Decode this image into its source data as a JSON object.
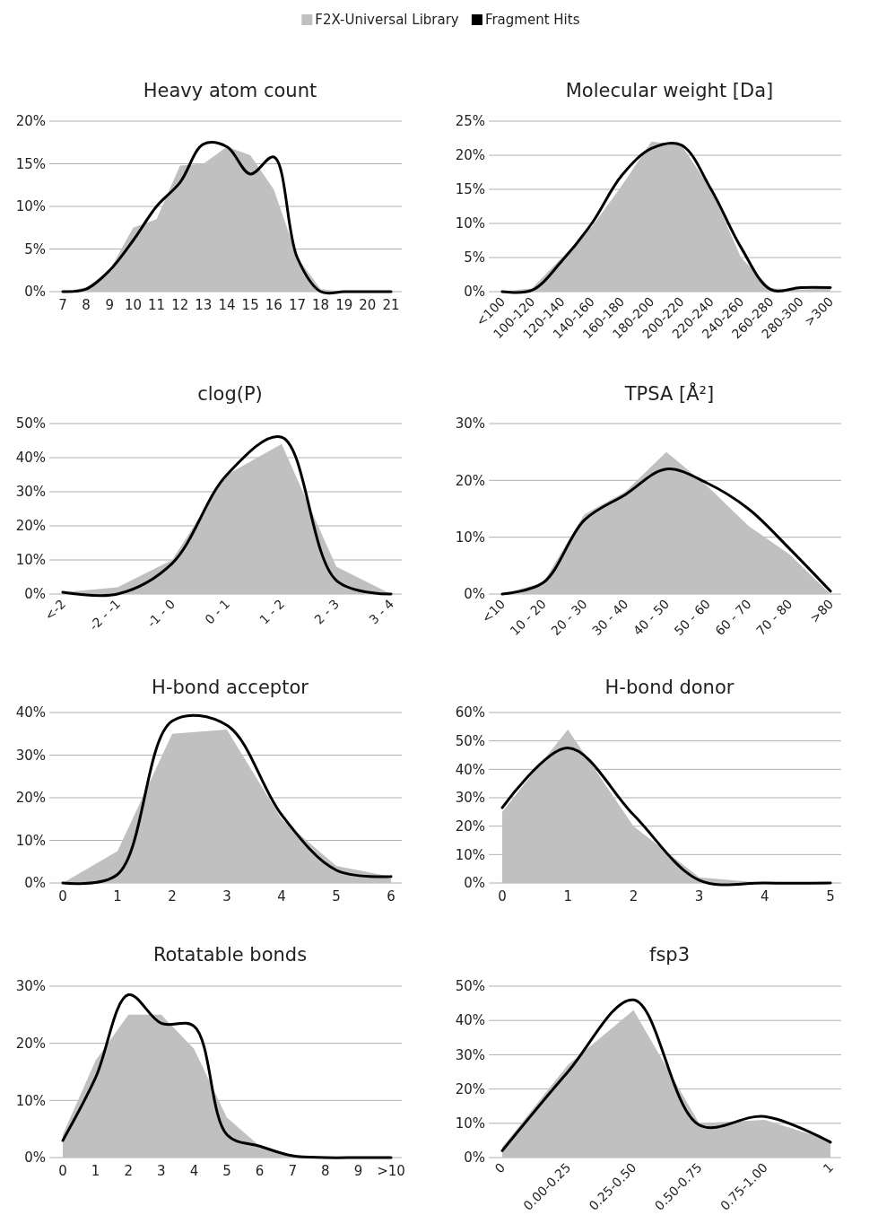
{
  "chart_data": [
    {
      "type": "area",
      "title": "Heavy atom count",
      "categories": [
        "7",
        "8",
        "9",
        "10",
        "11",
        "12",
        "13",
        "14",
        "15",
        "16",
        "17",
        "18",
        "19",
        "20",
        "21"
      ],
      "legend": "top",
      "grid": "y",
      "ylim": [
        0,
        20
      ],
      "yticks": [
        {
          "value": 0,
          "label": "0%"
        },
        {
          "value": 5,
          "label": "5%"
        },
        {
          "value": 10,
          "label": "10%"
        },
        {
          "value": 15,
          "label": "15%"
        },
        {
          "value": 20,
          "label": "20%"
        }
      ],
      "series": [
        {
          "name": "F2X-Universal Library",
          "color": "#c0c0c0",
          "values": [
            0,
            0.5,
            2.5,
            7.5,
            8.5,
            14.8,
            15,
            17,
            16,
            12,
            4,
            0.3,
            0,
            0,
            0
          ]
        },
        {
          "name": "Fragment Hits",
          "type": "line",
          "color": "#000000",
          "values": [
            0,
            0.3,
            2.5,
            6,
            10,
            12.8,
            17.3,
            17,
            13.8,
            15.8,
            4,
            0,
            0,
            0,
            0
          ]
        }
      ]
    },
    {
      "type": "area",
      "title": "Molecular weight [Da]",
      "categories": [
        "<100",
        "100-120",
        "120-140",
        "140-160",
        "160-180",
        "180-200",
        "200-220",
        "220-240",
        "240-260",
        "260-280",
        "280-300",
        ">300"
      ],
      "grid": "y",
      "ylim": [
        0,
        25
      ],
      "yticks": [
        {
          "value": 0,
          "label": "0%"
        },
        {
          "value": 5,
          "label": "5%"
        },
        {
          "value": 10,
          "label": "10%"
        },
        {
          "value": 15,
          "label": "15%"
        },
        {
          "value": 20,
          "label": "20%"
        },
        {
          "value": 25,
          "label": "25%"
        }
      ],
      "series": [
        {
          "color": "#c0c0c0",
          "values": [
            0,
            0.5,
            5,
            9.5,
            15.5,
            22,
            21.5,
            15,
            5,
            0.5,
            0.3,
            0.5
          ]
        },
        {
          "type": "line",
          "color": "#000000",
          "values": [
            0,
            0.2,
            4.5,
            10,
            17,
            21,
            21.5,
            15,
            6.5,
            0.3,
            0.6,
            0.6
          ]
        }
      ]
    },
    {
      "type": "area",
      "title": "clog(P)",
      "categories": [
        "<-2",
        "-2 - -1",
        "-1 - 0",
        "0 - 1",
        "1 - 2",
        "2 - 3",
        "3 - 4"
      ],
      "grid": "y",
      "ylim": [
        0,
        50
      ],
      "yticks": [
        {
          "value": 0,
          "label": "0%"
        },
        {
          "value": 10,
          "label": "10%"
        },
        {
          "value": 20,
          "label": "20%"
        },
        {
          "value": 30,
          "label": "30%"
        },
        {
          "value": 40,
          "label": "40%"
        },
        {
          "value": 50,
          "label": "50%"
        }
      ],
      "series": [
        {
          "color": "#c0c0c0",
          "values": [
            0.5,
            2,
            10,
            35,
            44,
            8,
            0
          ]
        },
        {
          "type": "line",
          "color": "#000000",
          "values": [
            0.5,
            0,
            9,
            35,
            46,
            4,
            0
          ]
        }
      ]
    },
    {
      "type": "area",
      "title": "TPSA [Å²]",
      "categories": [
        "<10",
        "10 - 20",
        "20 - 30",
        "30 - 40",
        "40 - 50",
        "50 - 60",
        "60 - 70",
        "70 - 80",
        ">80"
      ],
      "grid": "y",
      "ylim": [
        0,
        30
      ],
      "yticks": [
        {
          "value": 0,
          "label": "0%"
        },
        {
          "value": 10,
          "label": "10%"
        },
        {
          "value": 20,
          "label": "20%"
        },
        {
          "value": 30,
          "label": "30%"
        }
      ],
      "series": [
        {
          "color": "#c0c0c0",
          "values": [
            0,
            2,
            14,
            18,
            25,
            19,
            12,
            7,
            0
          ]
        },
        {
          "type": "line",
          "color": "#000000",
          "values": [
            0,
            2,
            13,
            17.5,
            22,
            19.5,
            15,
            8,
            0.5
          ]
        }
      ]
    },
    {
      "type": "area",
      "title": "H-bond acceptor",
      "categories": [
        "0",
        "1",
        "2",
        "3",
        "4",
        "5",
        "6"
      ],
      "grid": "y",
      "ylim": [
        0,
        40
      ],
      "yticks": [
        {
          "value": 0,
          "label": "0%"
        },
        {
          "value": 10,
          "label": "10%"
        },
        {
          "value": 20,
          "label": "20%"
        },
        {
          "value": 30,
          "label": "30%"
        },
        {
          "value": 40,
          "label": "40%"
        }
      ],
      "series": [
        {
          "color": "#c0c0c0",
          "values": [
            0,
            7.5,
            35,
            36,
            15,
            4,
            1.5
          ]
        },
        {
          "type": "line",
          "color": "#000000",
          "values": [
            0,
            2,
            38,
            37,
            16,
            3,
            1.5
          ]
        }
      ]
    },
    {
      "type": "area",
      "title": "H-bond donor",
      "categories": [
        "0",
        "1",
        "2",
        "3",
        "4",
        "5"
      ],
      "grid": "y",
      "ylim": [
        0,
        60
      ],
      "yticks": [
        {
          "value": 0,
          "label": "0%"
        },
        {
          "value": 10,
          "label": "10%"
        },
        {
          "value": 20,
          "label": "20%"
        },
        {
          "value": 30,
          "label": "30%"
        },
        {
          "value": 40,
          "label": "40%"
        },
        {
          "value": 50,
          "label": "50%"
        },
        {
          "value": 60,
          "label": "60%"
        }
      ],
      "series": [
        {
          "color": "#c0c0c0",
          "values": [
            25,
            54,
            20,
            2,
            0,
            0
          ]
        },
        {
          "type": "line",
          "color": "#000000",
          "values": [
            26.5,
            47.5,
            24,
            1,
            0,
            0
          ]
        }
      ]
    },
    {
      "type": "area",
      "title": "Rotatable bonds",
      "categories": [
        "0",
        "1",
        "2",
        "3",
        "4",
        "5",
        "6",
        "7",
        "8",
        "9",
        ">10"
      ],
      "grid": "y",
      "ylim": [
        0,
        30
      ],
      "yticks": [
        {
          "value": 0,
          "label": "0%"
        },
        {
          "value": 10,
          "label": "10%"
        },
        {
          "value": 20,
          "label": "20%"
        },
        {
          "value": 30,
          "label": "30%"
        }
      ],
      "series": [
        {
          "color": "#c0c0c0",
          "values": [
            4,
            17,
            25,
            25,
            19,
            7,
            2,
            0.3,
            0,
            0,
            0
          ]
        },
        {
          "type": "line",
          "color": "#000000",
          "values": [
            3,
            14,
            28.5,
            23.5,
            23,
            4,
            2,
            0.3,
            0,
            0,
            0
          ]
        }
      ]
    },
    {
      "type": "area",
      "title": "fsp3",
      "categories": [
        "0",
        "0.00-0.25",
        "0.25-0.50",
        "0.50-0.75",
        "0.75-1.00",
        "1"
      ],
      "grid": "y",
      "ylim": [
        0,
        50
      ],
      "yticks": [
        {
          "value": 0,
          "label": "0%"
        },
        {
          "value": 10,
          "label": "10%"
        },
        {
          "value": 20,
          "label": "20%"
        },
        {
          "value": 30,
          "label": "30%"
        },
        {
          "value": 40,
          "label": "40%"
        },
        {
          "value": 50,
          "label": "50%"
        }
      ],
      "series": [
        {
          "color": "#c0c0c0",
          "values": [
            3,
            27,
            43,
            10,
            11,
            5
          ]
        },
        {
          "type": "line",
          "color": "#000000",
          "values": [
            2,
            25,
            46,
            9.5,
            12,
            4.5
          ]
        }
      ]
    }
  ]
}
